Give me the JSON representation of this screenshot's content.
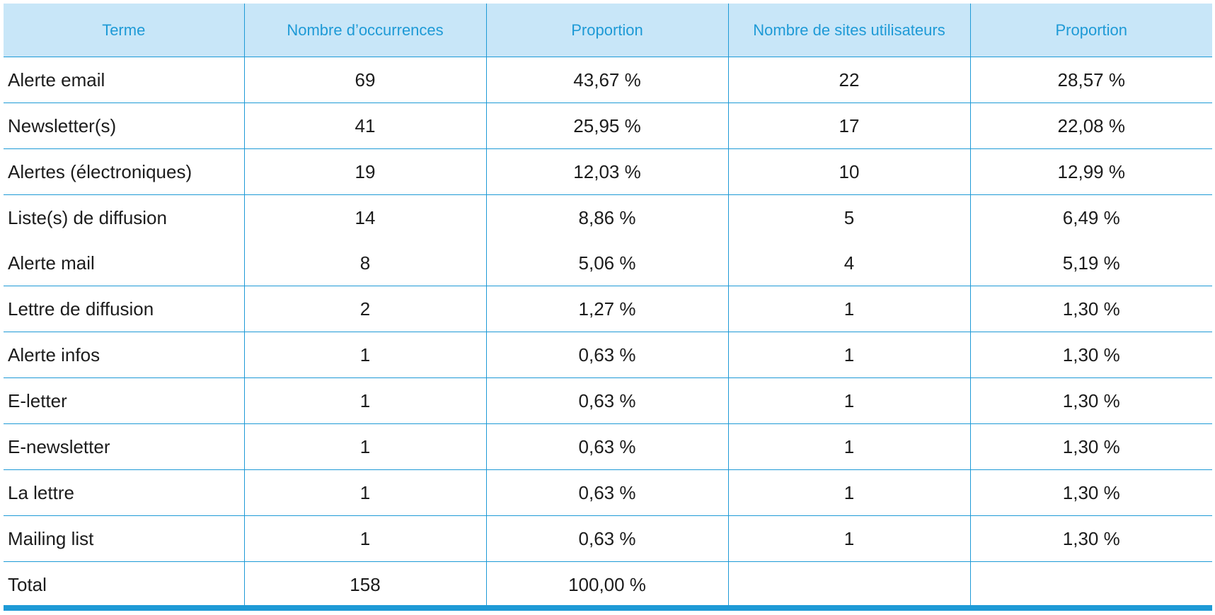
{
  "table": {
    "headers": [
      "Terme",
      "Nombre d’occurrences",
      "Proportion",
      "Nombre de sites utilisateurs",
      "Proportion"
    ],
    "rows": [
      [
        "Alerte email",
        "69",
        "43,67 %",
        "22",
        "28,57 %"
      ],
      [
        "Newsletter(s)",
        "41",
        "25,95 %",
        "17",
        "22,08 %"
      ],
      [
        "Alertes (électroniques)",
        "19",
        "12,03 %",
        "10",
        "12,99 %"
      ],
      [
        "Liste(s) de diffusion",
        "14",
        "8,86 %",
        "5",
        "6,49 %"
      ],
      [
        "Alerte mail",
        "8",
        "5,06 %",
        "4",
        "5,19 %"
      ],
      [
        "Lettre de diffusion",
        "2",
        "1,27 %",
        "1",
        "1,30 %"
      ],
      [
        "Alerte infos",
        "1",
        "0,63 %",
        "1",
        "1,30 %"
      ],
      [
        "E-letter",
        "1",
        "0,63 %",
        "1",
        "1,30 %"
      ],
      [
        "E-newsletter",
        "1",
        "0,63 %",
        "1",
        "1,30 %"
      ],
      [
        "La lettre",
        "1",
        "0,63 %",
        "1",
        "1,30 %"
      ],
      [
        "Mailing list",
        "1",
        "0,63 %",
        "1",
        "1,30 %"
      ],
      [
        "Total",
        "158",
        "100,00 %",
        "",
        ""
      ]
    ]
  },
  "colors": {
    "header_background": "#c8e6f8",
    "header_text": "#1e9ad6",
    "rule": "#1e9ad6",
    "body_text": "#1c1c1c"
  }
}
